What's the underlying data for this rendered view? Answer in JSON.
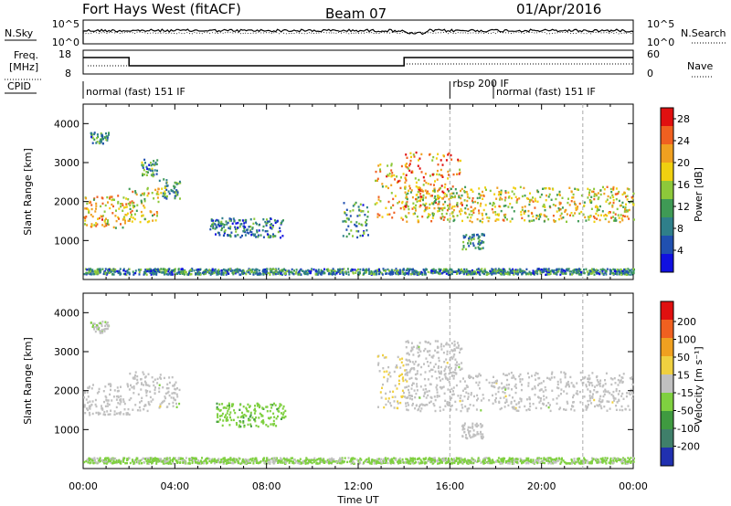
{
  "header": {
    "site": "Fort Hays West (fitACF)",
    "beam": "Beam 07",
    "date": "01/Apr/2016"
  },
  "meta_panel": {
    "left_labels": {
      "nsky": "N.Sky",
      "freq_line1": "Freq.",
      "freq_line2": "[MHz]",
      "cpid": "CPID"
    },
    "right_labels": {
      "nsearch": "N.Search",
      "nave": "Nave"
    },
    "nsky_ticks": [
      "10^5",
      "10^0"
    ],
    "nsearch_ticks": [
      "10^5",
      "10^0"
    ],
    "freq_ticks": [
      "18",
      "8"
    ],
    "nave_ticks": [
      "60",
      "0"
    ],
    "modes": [
      {
        "label": "normal (fast) 151 IF",
        "start_h": 0,
        "end_h": 16
      },
      {
        "label": "rbsp 200 IF",
        "start_h": 16,
        "end_h": 17.9
      },
      {
        "label": "normal (fast) 151 IF",
        "start_h": 17.9,
        "end_h": 24
      }
    ]
  },
  "chart_data": [
    {
      "type": "heatmap",
      "name": "power",
      "xlabel": "",
      "ylabel": "Slant Range [km]",
      "x_range_h": [
        0,
        24
      ],
      "ylim": [
        0,
        4500
      ],
      "yticks": [
        "1000",
        "2000",
        "3000",
        "4000"
      ],
      "colorbar": {
        "label": "Power [dB]",
        "ticks": [
          "4",
          "8",
          "12",
          "16",
          "20",
          "24",
          "28"
        ],
        "colors": [
          "#1010e0",
          "#2050b0",
          "#2f7f8a",
          "#3f9a55",
          "#8dc83a",
          "#f0d010",
          "#f0a020",
          "#f06020",
          "#e01010"
        ],
        "range": [
          0,
          30
        ]
      },
      "echo_regions": [
        {
          "t0": 0.0,
          "t1": 1.9,
          "r0": 1350,
          "r1": 2200,
          "level": 20
        },
        {
          "t0": 0.3,
          "t1": 1.1,
          "r0": 3500,
          "r1": 3800,
          "level": 10
        },
        {
          "t0": 1.9,
          "t1": 3.3,
          "r0": 1500,
          "r1": 2400,
          "level": 18
        },
        {
          "t0": 2.5,
          "t1": 3.2,
          "r0": 2650,
          "r1": 3100,
          "level": 10
        },
        {
          "t0": 3.3,
          "t1": 4.2,
          "r0": 2100,
          "r1": 2600,
          "level": 11
        },
        {
          "t0": 5.5,
          "t1": 8.7,
          "r0": 1100,
          "r1": 1600,
          "level": 8
        },
        {
          "t0": 11.3,
          "t1": 12.4,
          "r0": 1100,
          "r1": 2000,
          "level": 10
        },
        {
          "t0": 12.7,
          "t1": 14.1,
          "r0": 1500,
          "r1": 3000,
          "level": 20
        },
        {
          "t0": 14.0,
          "t1": 16.5,
          "r0": 1700,
          "r1": 3300,
          "level": 22
        },
        {
          "t0": 14.0,
          "t1": 24.0,
          "r0": 1500,
          "r1": 2400,
          "level": 18
        },
        {
          "t0": 16.5,
          "t1": 17.5,
          "r0": 800,
          "r1": 1200,
          "level": 10
        },
        {
          "t0": 0.0,
          "t1": 24.0,
          "r0": 150,
          "r1": 300,
          "level": 9
        }
      ]
    },
    {
      "type": "heatmap",
      "name": "velocity",
      "xlabel": "Time UT",
      "ylabel": "Slant Range [km]",
      "x_range_h": [
        0,
        24
      ],
      "xticks": [
        "00:00",
        "04:00",
        "08:00",
        "12:00",
        "16:00",
        "20:00",
        "00:00"
      ],
      "ylim": [
        0,
        4500
      ],
      "yticks": [
        "1000",
        "2000",
        "3000",
        "4000"
      ],
      "colorbar": {
        "label": "Velocity [m s^-1]",
        "ticks": [
          "200",
          "100",
          "50",
          "15",
          "-15",
          "-50",
          "-100",
          "-200"
        ],
        "colors": [
          "#2030b0",
          "#3f7f6a",
          "#3f9a40",
          "#7fd040",
          "#c0c0c0",
          "#f0d040",
          "#f0a020",
          "#f06020",
          "#e01010"
        ],
        "range": [
          -250,
          250
        ]
      },
      "echo_regions": [
        {
          "t0": 0.0,
          "t1": 2.0,
          "r0": 1400,
          "r1": 2200,
          "level": 0
        },
        {
          "t0": 0.3,
          "t1": 1.1,
          "r0": 3500,
          "r1": 3800,
          "level": -20
        },
        {
          "t0": 2.0,
          "t1": 4.2,
          "r0": 1500,
          "r1": 2500,
          "level": 0
        },
        {
          "t0": 5.8,
          "t1": 8.8,
          "r0": 1100,
          "r1": 1700,
          "level": -60
        },
        {
          "t0": 12.8,
          "t1": 14.1,
          "r0": 1500,
          "r1": 3000,
          "level": 30
        },
        {
          "t0": 14.0,
          "t1": 24.0,
          "r0": 1500,
          "r1": 2500,
          "level": 0
        },
        {
          "t0": 14.0,
          "t1": 16.5,
          "r0": 2500,
          "r1": 3300,
          "level": 0
        },
        {
          "t0": 16.5,
          "t1": 17.5,
          "r0": 800,
          "r1": 1200,
          "level": 0
        },
        {
          "t0": 0.0,
          "t1": 24.0,
          "r0": 150,
          "r1": 300,
          "level": -40
        }
      ]
    }
  ]
}
